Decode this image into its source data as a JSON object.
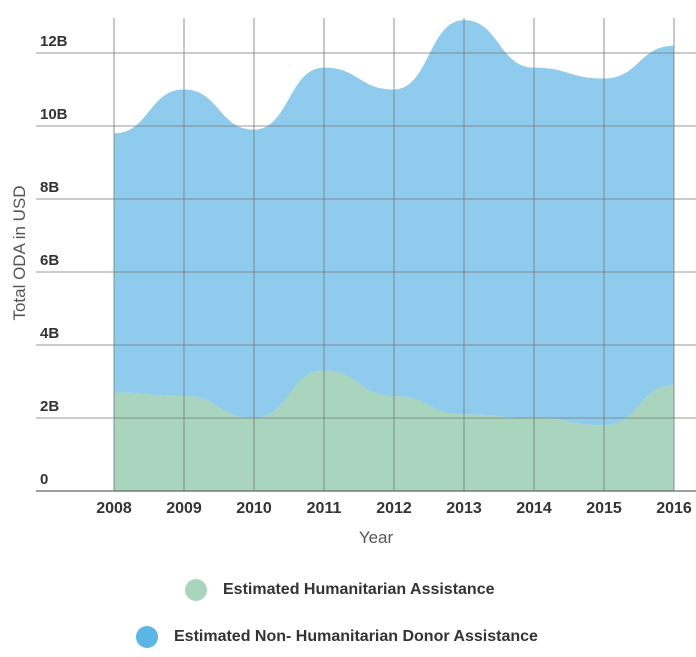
{
  "chart_data": {
    "type": "area",
    "stacked": true,
    "categories": [
      "2008",
      "2009",
      "2010",
      "2011",
      "2012",
      "2013",
      "2014",
      "2015",
      "2016"
    ],
    "x": [
      2008,
      2009,
      2010,
      2011,
      2012,
      2013,
      2014,
      2015,
      2016
    ],
    "series": [
      {
        "name": "Estimated Humanitarian Assistance",
        "color": "#a9d5be",
        "values": [
          2.7,
          2.6,
          2.0,
          3.3,
          2.6,
          2.1,
          2.0,
          1.8,
          2.9
        ]
      },
      {
        "name": "Estimated Non- Humanitarian Donor Assistance",
        "color": "#8ecbec",
        "values": [
          7.1,
          8.4,
          7.9,
          8.3,
          8.4,
          10.8,
          9.6,
          9.5,
          9.3
        ]
      }
    ],
    "totals": [
      9.8,
      11.0,
      9.9,
      11.6,
      11.0,
      12.9,
      11.6,
      11.3,
      12.2
    ],
    "ylim": [
      0,
      13
    ],
    "yticks": [
      0,
      2,
      4,
      6,
      8,
      10,
      12
    ],
    "ytick_labels": [
      "0",
      "2B",
      "4B",
      "6B",
      "8B",
      "10B",
      "12B"
    ],
    "xlabel": "Year",
    "ylabel": "Total ODA in USD",
    "grid": true,
    "legend_position": "bottom"
  }
}
